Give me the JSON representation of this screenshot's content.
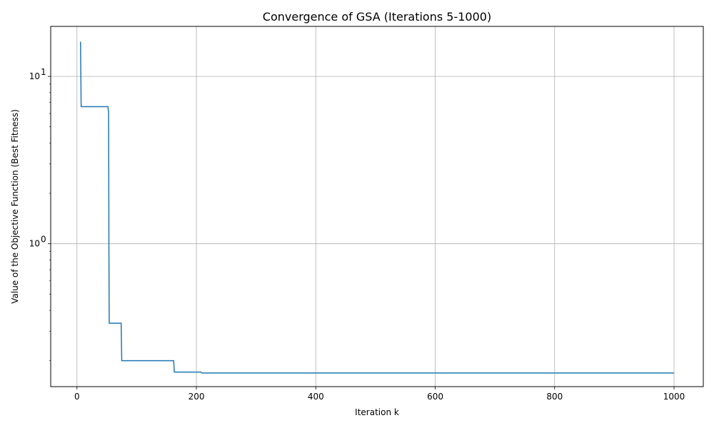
{
  "chart_data": {
    "type": "line",
    "title": "Convergence of GSA (Iterations 5-1000)",
    "xlabel": "Iteration k",
    "ylabel": "Value of the Objective Function (Best Fitness)",
    "xlim": [
      -44,
      1049
    ],
    "ylim": [
      0.14,
      19.9
    ],
    "yscale": "log",
    "grid": true,
    "line_color": "#1f77b4",
    "x_ticks": [
      {
        "value": 0,
        "label": "0"
      },
      {
        "value": 200,
        "label": "200"
      },
      {
        "value": 400,
        "label": "400"
      },
      {
        "value": 600,
        "label": "600"
      },
      {
        "value": 800,
        "label": "800"
      },
      {
        "value": 1000,
        "label": "1000"
      }
    ],
    "y_ticks": [
      {
        "value": 1,
        "label": "10",
        "exp": "0"
      },
      {
        "value": 10,
        "label": "10",
        "exp": "1"
      }
    ],
    "y_minor_ticks": [
      0.2,
      0.3,
      0.4,
      0.5,
      0.6,
      0.7,
      0.8,
      0.9,
      2,
      3,
      4,
      5,
      6,
      7,
      8,
      9
    ],
    "series": [
      {
        "x": [
          5,
          6,
          7,
          52,
          53,
          53.5,
          54,
          74,
          75,
          76,
          161,
          162,
          163,
          207,
          208,
          209,
          1000
        ],
        "y": [
          16.0,
          16.0,
          6.6,
          6.6,
          6.0,
          1.0,
          0.335,
          0.335,
          0.2,
          0.2,
          0.2,
          0.2,
          0.171,
          0.171,
          0.171,
          0.169,
          0.169
        ]
      }
    ]
  }
}
